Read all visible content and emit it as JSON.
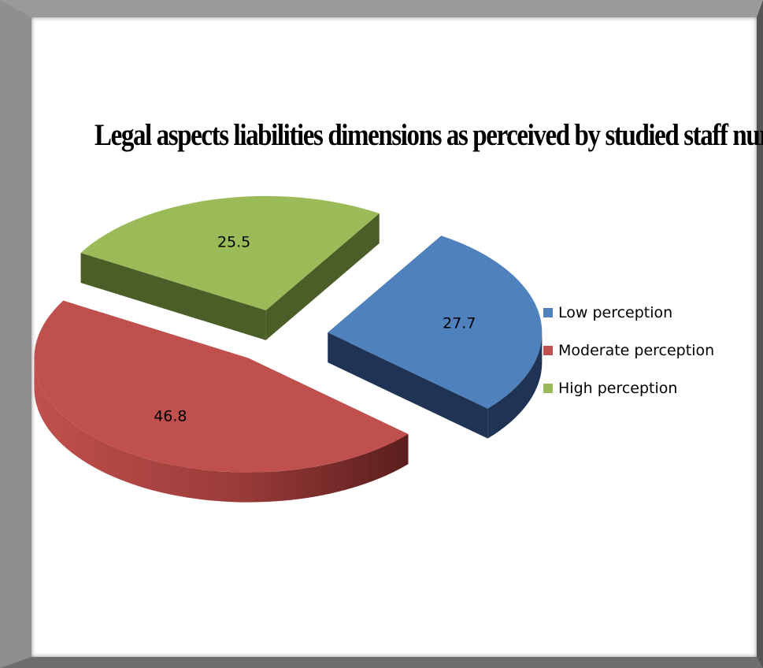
{
  "chart_data": {
    "type": "pie",
    "variant": "3d-exploded",
    "title": "Legal aspects liabilities dimensions as perceived by studied staff nurses",
    "categories": [
      "Low perception",
      "Moderate perception",
      "High perception"
    ],
    "values": [
      27.7,
      46.8,
      25.5
    ],
    "data_labels": [
      "27.7",
      "46.8",
      "25.5"
    ],
    "colors": [
      "#4F81BD",
      "#C0504D",
      "#9BBB59"
    ],
    "side_colors": [
      "#1F3454",
      "#8E3432",
      "#4C5E27"
    ],
    "legend_position": "right"
  }
}
